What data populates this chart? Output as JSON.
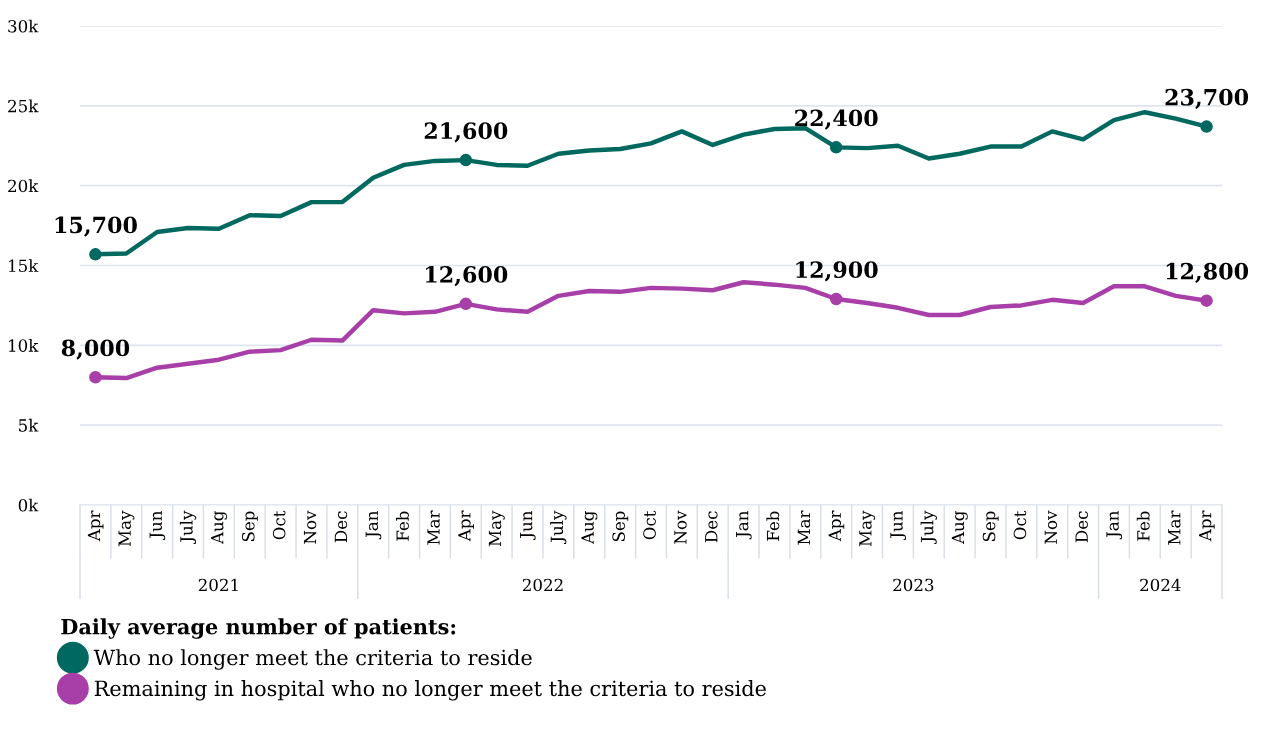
{
  "chart_data": {
    "type": "line",
    "categories": [
      "Apr",
      "May",
      "Jun",
      "July",
      "Aug",
      "Sep",
      "Oct",
      "Nov",
      "Dec",
      "Jan",
      "Feb",
      "Mar",
      "Apr",
      "May",
      "Jun",
      "July",
      "Aug",
      "Sep",
      "Oct",
      "Nov",
      "Dec",
      "Jan",
      "Feb",
      "Mar",
      "Apr",
      "May",
      "Jun",
      "July",
      "Aug",
      "Sep",
      "Oct",
      "Nov",
      "Dec",
      "Jan",
      "Feb",
      "Mar",
      "Apr"
    ],
    "series": [
      {
        "name": "Who no longer meet the criteria to reside",
        "color": "#00695f",
        "values": [
          15700,
          15750,
          17100,
          17350,
          17300,
          18150,
          18100,
          18970,
          18970,
          20500,
          21300,
          21550,
          21600,
          21300,
          21250,
          22000,
          22200,
          22300,
          22650,
          23400,
          22550,
          23200,
          23550,
          23600,
          22400,
          22350,
          22500,
          21700,
          22000,
          22450,
          22450,
          23400,
          22900,
          24100,
          24600,
          24200,
          23700
        ],
        "value_labels": [
          "15,700",
          null,
          null,
          null,
          null,
          null,
          null,
          null,
          null,
          null,
          null,
          null,
          "21,600",
          null,
          null,
          null,
          null,
          null,
          null,
          null,
          null,
          null,
          null,
          null,
          "22,400",
          null,
          null,
          null,
          null,
          null,
          null,
          null,
          null,
          null,
          null,
          null,
          "23,700"
        ]
      },
      {
        "name": "Remaining in hospital who no longer meet the criteria to reside",
        "color": "#a83fa8",
        "values": [
          8000,
          7950,
          8600,
          8850,
          9100,
          9600,
          9700,
          10350,
          10300,
          12200,
          12000,
          12100,
          12600,
          12250,
          12100,
          13100,
          13400,
          13350,
          13600,
          13550,
          13450,
          13950,
          13800,
          13600,
          12900,
          12650,
          12350,
          11900,
          11900,
          12400,
          12500,
          12850,
          12650,
          13700,
          13700,
          13100,
          12800
        ],
        "value_labels": [
          "8,000",
          null,
          null,
          null,
          null,
          null,
          null,
          null,
          null,
          null,
          null,
          null,
          "12,600",
          null,
          null,
          null,
          null,
          null,
          null,
          null,
          null,
          null,
          null,
          null,
          "12,900",
          null,
          null,
          null,
          null,
          null,
          null,
          null,
          null,
          null,
          null,
          null,
          "12,800"
        ]
      }
    ],
    "annotations": [
      "2021",
      "2022",
      "2023",
      "2024"
    ],
    "ylim": [
      0,
      30000
    ],
    "yticks": [
      {
        "value": 0,
        "label": "0k"
      },
      {
        "value": 5000,
        "label": "5k"
      },
      {
        "value": 10000,
        "label": "10k"
      },
      {
        "value": 15000,
        "label": "15k"
      },
      {
        "value": 20000,
        "label": "20k"
      },
      {
        "value": 25000,
        "label": "25k"
      },
      {
        "value": 30000,
        "label": "30k"
      }
    ],
    "grid": "y",
    "legend": "bottom",
    "legend_title": "Daily average number of patients:",
    "line_style": "solid"
  }
}
